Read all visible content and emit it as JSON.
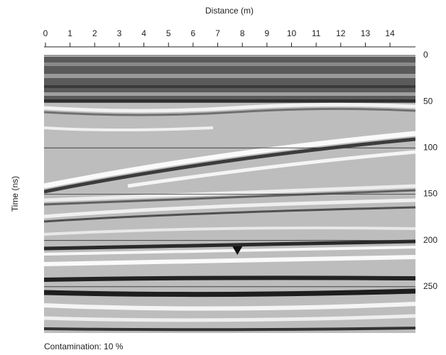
{
  "chart_data": {
    "type": "radargram",
    "xlabel": "Distance (m)",
    "ylabel": "Time (ns)",
    "xlim": [
      0,
      15
    ],
    "xticks": [
      0,
      1,
      2,
      3,
      4,
      5,
      6,
      7,
      8,
      9,
      10,
      11,
      12,
      13,
      14
    ],
    "ylim": [
      0,
      300
    ],
    "yticks": [
      0,
      50,
      100,
      150,
      200,
      250
    ],
    "y_inverted": true,
    "grid": true,
    "marker": {
      "x": 7.8,
      "y": 211,
      "color": "#111111"
    },
    "annotation": "Contamination: 10 %"
  }
}
